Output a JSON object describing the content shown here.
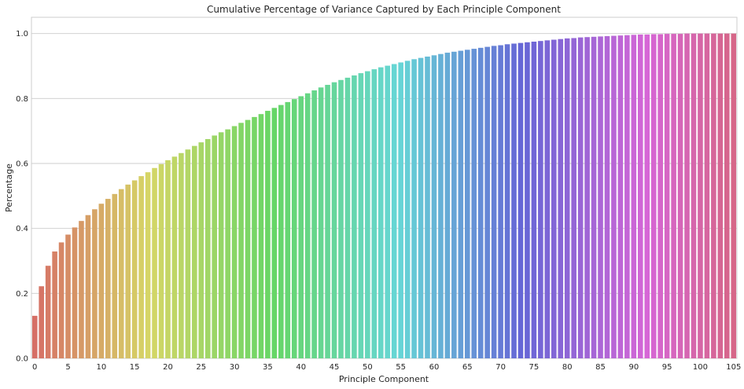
{
  "chart_data": {
    "type": "bar",
    "title": "Cumulative Percentage of Variance Captured by Each Principle Component",
    "xlabel": "Principle Component",
    "ylabel": "Percentage",
    "ylim": [
      0,
      1.05
    ],
    "yticks": [
      "0.0",
      "0.2",
      "0.4",
      "0.6",
      "0.8",
      "1.0"
    ],
    "xticks": [
      "0",
      "5",
      "10",
      "15",
      "20",
      "25",
      "30",
      "35",
      "40",
      "45",
      "50",
      "55",
      "60",
      "65",
      "70",
      "75",
      "80",
      "85",
      "90",
      "95",
      "100",
      "105"
    ],
    "grid": true,
    "legend": "none",
    "categories": [
      0,
      1,
      2,
      3,
      4,
      5,
      6,
      7,
      8,
      9,
      10,
      11,
      12,
      13,
      14,
      15,
      16,
      17,
      18,
      19,
      20,
      21,
      22,
      23,
      24,
      25,
      26,
      27,
      28,
      29,
      30,
      31,
      32,
      33,
      34,
      35,
      36,
      37,
      38,
      39,
      40,
      41,
      42,
      43,
      44,
      45,
      46,
      47,
      48,
      49,
      50,
      51,
      52,
      53,
      54,
      55,
      56,
      57,
      58,
      59,
      60,
      61,
      62,
      63,
      64,
      65,
      66,
      67,
      68,
      69,
      70,
      71,
      72,
      73,
      74,
      75,
      76,
      77,
      78,
      79,
      80,
      81,
      82,
      83,
      84,
      85,
      86,
      87,
      88,
      89,
      90,
      91,
      92,
      93,
      94,
      95,
      96,
      97,
      98,
      99,
      100,
      101,
      102,
      103,
      104,
      105
    ],
    "values": [
      0.131,
      0.222,
      0.285,
      0.329,
      0.357,
      0.381,
      0.403,
      0.423,
      0.441,
      0.459,
      0.476,
      0.491,
      0.506,
      0.521,
      0.535,
      0.548,
      0.561,
      0.573,
      0.586,
      0.598,
      0.61,
      0.621,
      0.632,
      0.643,
      0.654,
      0.665,
      0.675,
      0.686,
      0.696,
      0.705,
      0.715,
      0.725,
      0.734,
      0.743,
      0.752,
      0.762,
      0.771,
      0.78,
      0.789,
      0.798,
      0.807,
      0.816,
      0.825,
      0.834,
      0.842,
      0.85,
      0.857,
      0.864,
      0.871,
      0.878,
      0.884,
      0.89,
      0.896,
      0.901,
      0.906,
      0.911,
      0.916,
      0.921,
      0.925,
      0.929,
      0.933,
      0.937,
      0.941,
      0.944,
      0.947,
      0.95,
      0.953,
      0.956,
      0.959,
      0.962,
      0.964,
      0.967,
      0.969,
      0.971,
      0.973,
      0.975,
      0.977,
      0.979,
      0.981,
      0.983,
      0.985,
      0.986,
      0.988,
      0.989,
      0.99,
      0.991,
      0.992,
      0.993,
      0.994,
      0.995,
      0.996,
      0.997,
      0.997,
      0.998,
      0.998,
      0.999,
      0.999,
      0.999,
      1.0,
      1.0,
      1.0,
      1.0,
      1.0,
      1.0,
      1.0,
      1.0
    ]
  }
}
